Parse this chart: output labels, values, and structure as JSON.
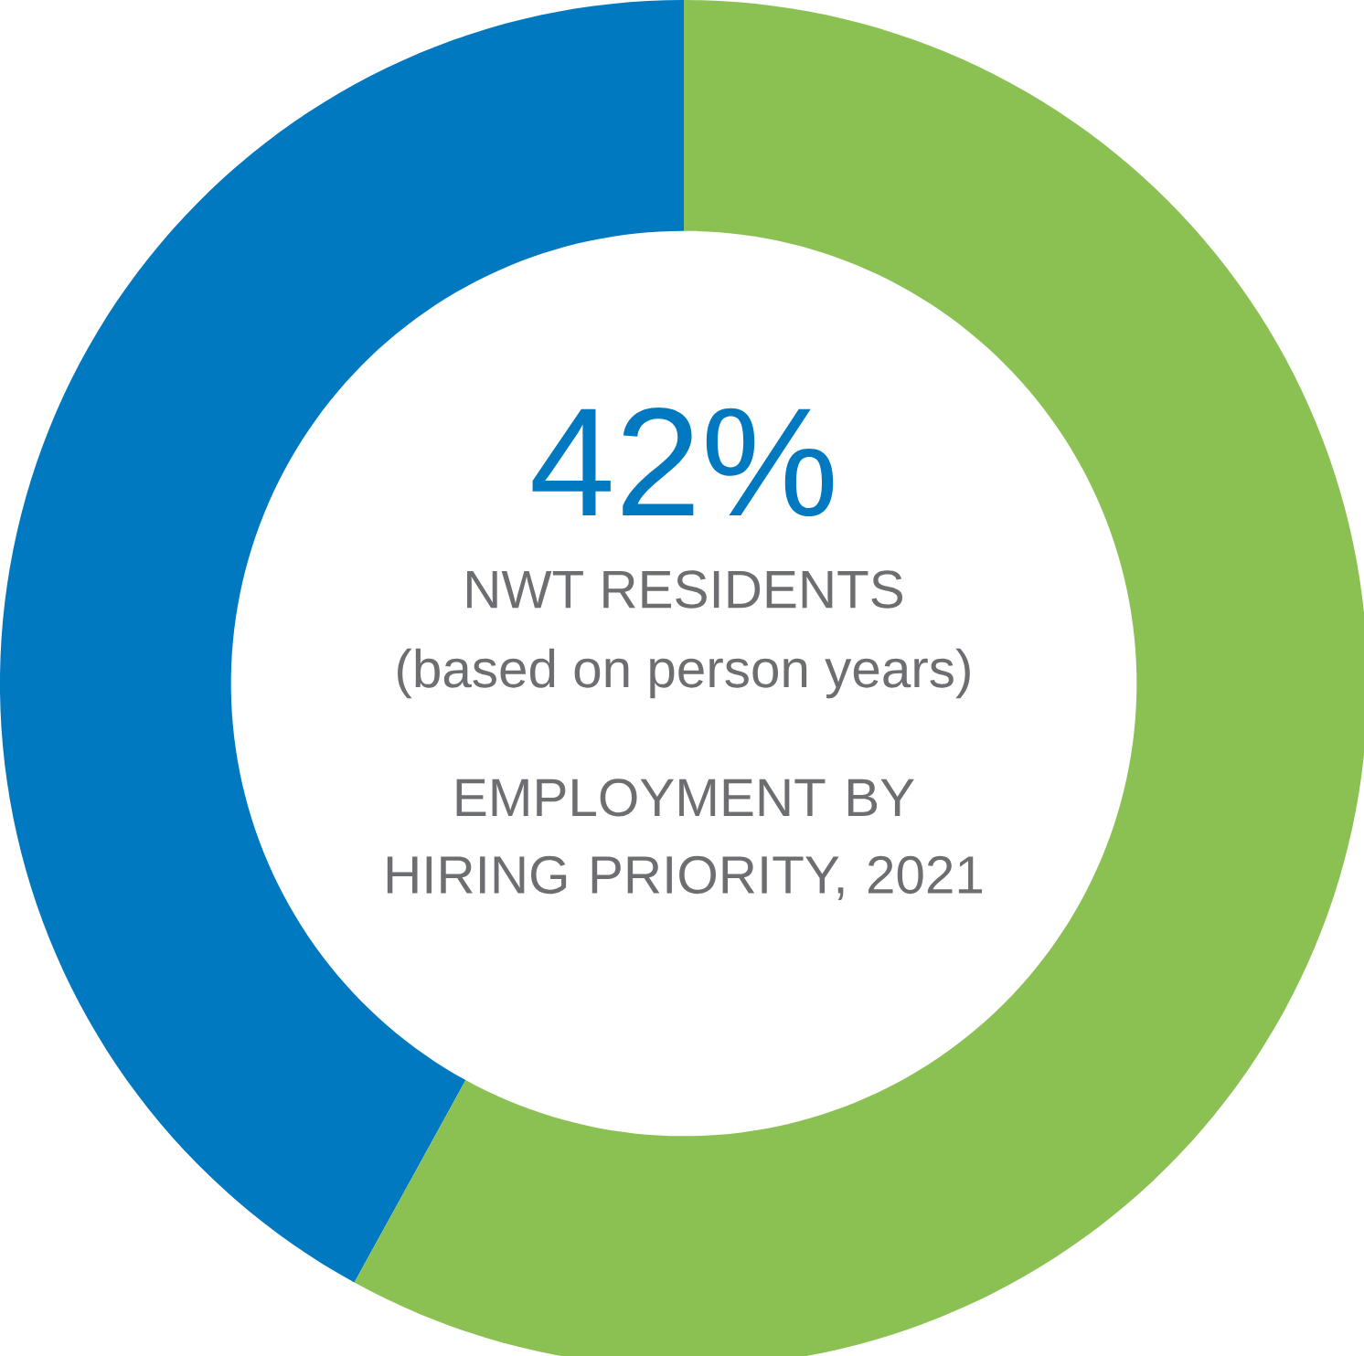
{
  "chart_data": {
    "type": "donut",
    "title": "EMPLOYMENT BY HIRING PRIORITY, 2021",
    "categories": [
      "NWT RESIDENTS",
      null
    ],
    "values": [
      42,
      58
    ],
    "colors": [
      "#0079c1",
      "#8bc153"
    ],
    "value_labels": [
      "42%",
      null
    ],
    "annotations": [
      "(based on person years)"
    ]
  }
}
